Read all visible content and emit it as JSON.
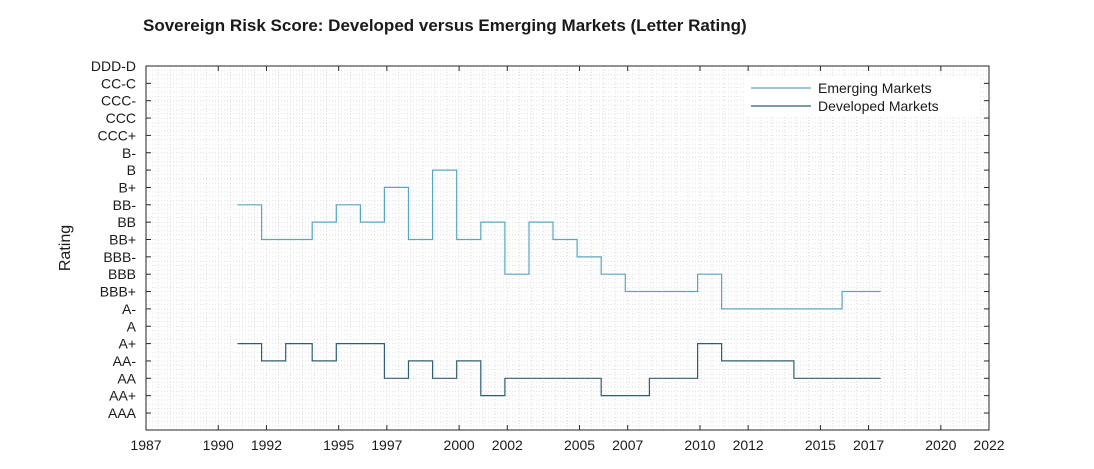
{
  "chart_data": {
    "type": "line",
    "title": "Sovereign Risk Score: Developed versus Emerging Markets (Letter Rating)",
    "xlabel": "",
    "ylabel": "Rating",
    "xlim": [
      1987,
      2022
    ],
    "x_ticks": [
      1987,
      1990,
      1992,
      1995,
      1997,
      2000,
      2002,
      2005,
      2007,
      2010,
      2012,
      2015,
      2017,
      2020,
      2022
    ],
    "y_ticks": [
      "AAA",
      "AA+",
      "AA",
      "AA-",
      "A+",
      "A",
      "A-",
      "BBB+",
      "BBB",
      "BBB-",
      "BB+",
      "BB",
      "BB-",
      "B+",
      "B",
      "B-",
      "CCC+",
      "CCC",
      "CCC-",
      "CC-C",
      "DDD-D"
    ],
    "step": "post",
    "grid": true,
    "legend_position": "top-right",
    "series": [
      {
        "name": "Emerging Markets",
        "color": "#5aa5c0",
        "points": [
          [
            1990.8,
            "BB-"
          ],
          [
            1991.8,
            "BB+"
          ],
          [
            1993.0,
            "BB+"
          ],
          [
            1993.9,
            "BB"
          ],
          [
            1994.9,
            "BB-"
          ],
          [
            1995.9,
            "BB"
          ],
          [
            1996.9,
            "B+"
          ],
          [
            1997.9,
            "BB+"
          ],
          [
            1998.9,
            "B"
          ],
          [
            1999.9,
            "BB+"
          ],
          [
            2000.9,
            "BB"
          ],
          [
            2001.9,
            "BBB"
          ],
          [
            2002.9,
            "BB"
          ],
          [
            2003.9,
            "BB+"
          ],
          [
            2004.9,
            "BBB-"
          ],
          [
            2005.9,
            "BBB"
          ],
          [
            2006.9,
            "BBB+"
          ],
          [
            2007.9,
            "BBB+"
          ],
          [
            2008.9,
            "BBB+"
          ],
          [
            2009.9,
            "BBB"
          ],
          [
            2010.9,
            "A-"
          ],
          [
            2011.9,
            "A-"
          ],
          [
            2012.9,
            "A-"
          ],
          [
            2013.9,
            "A-"
          ],
          [
            2014.9,
            "A-"
          ],
          [
            2015.9,
            "BBB+"
          ],
          [
            2017.5,
            "BBB+"
          ]
        ]
      },
      {
        "name": "Developed Markets",
        "color": "#2e5f6e",
        "points": [
          [
            1990.8,
            "A+"
          ],
          [
            1991.8,
            "AA-"
          ],
          [
            1992.8,
            "A+"
          ],
          [
            1993.9,
            "AA-"
          ],
          [
            1994.9,
            "A+"
          ],
          [
            1995.9,
            "A+"
          ],
          [
            1996.9,
            "AA"
          ],
          [
            1997.9,
            "AA-"
          ],
          [
            1998.9,
            "AA"
          ],
          [
            1999.9,
            "AA-"
          ],
          [
            2000.9,
            "AA+"
          ],
          [
            2001.9,
            "AA"
          ],
          [
            2002.9,
            "AA"
          ],
          [
            2003.9,
            "AA"
          ],
          [
            2004.9,
            "AA"
          ],
          [
            2005.9,
            "AA+"
          ],
          [
            2006.9,
            "AA+"
          ],
          [
            2007.9,
            "AA"
          ],
          [
            2008.9,
            "AA"
          ],
          [
            2009.9,
            "A+"
          ],
          [
            2010.9,
            "AA-"
          ],
          [
            2011.9,
            "AA-"
          ],
          [
            2012.9,
            "AA-"
          ],
          [
            2013.9,
            "AA"
          ],
          [
            2014.9,
            "AA"
          ],
          [
            2015.9,
            "AA"
          ],
          [
            2017.5,
            "AA"
          ]
        ]
      }
    ]
  }
}
